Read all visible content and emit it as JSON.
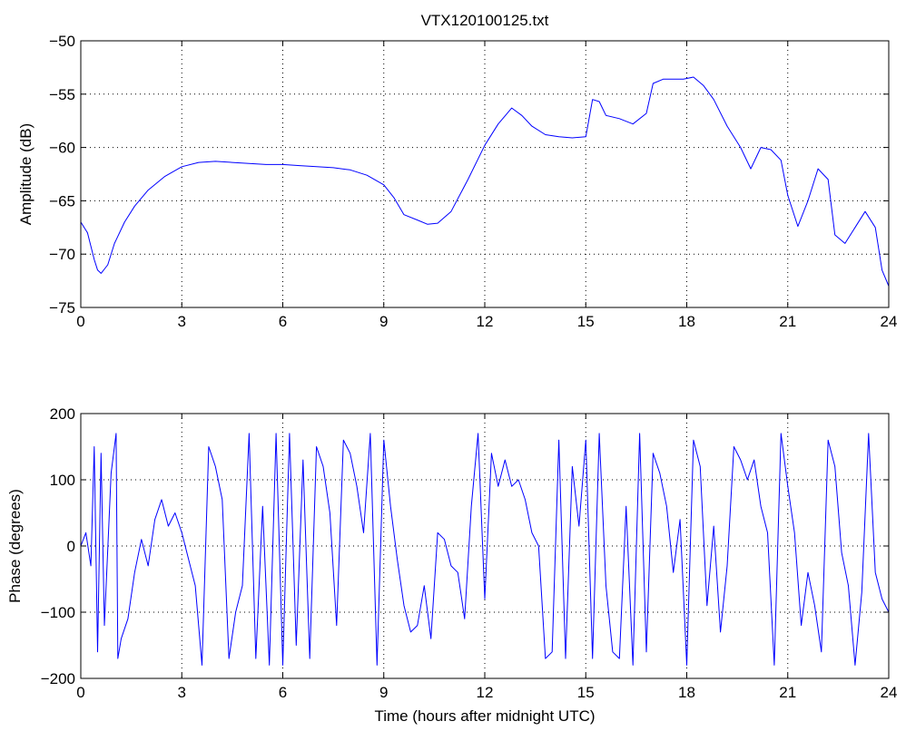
{
  "figure": {
    "background": "#ffffff",
    "line_color": "#0000ff",
    "axis_color": "#000000",
    "grid_color": "#000000"
  },
  "chart_data": [
    {
      "type": "line",
      "title": "VTX120100125.txt",
      "xlabel": "",
      "ylabel": "Amplitude (dB)",
      "xlim": [
        0,
        24
      ],
      "ylim": [
        -75,
        -50
      ],
      "xticks": [
        0,
        3,
        6,
        9,
        12,
        15,
        18,
        21,
        24
      ],
      "yticks": [
        -75,
        -70,
        -65,
        -60,
        -55,
        -50
      ],
      "grid": true,
      "series": [
        {
          "color": "#0000ff",
          "x": [
            0,
            0.2,
            0.4,
            0.5,
            0.6,
            0.8,
            1.0,
            1.3,
            1.6,
            2.0,
            2.5,
            3.0,
            3.5,
            4.0,
            4.5,
            5.0,
            5.5,
            6.0,
            6.5,
            7.0,
            7.5,
            8.0,
            8.5,
            9.0,
            9.3,
            9.6,
            10.0,
            10.3,
            10.6,
            11.0,
            11.5,
            12.0,
            12.4,
            12.8,
            13.1,
            13.4,
            13.8,
            14.2,
            14.6,
            15.0,
            15.2,
            15.4,
            15.6,
            16.0,
            16.4,
            16.8,
            17.0,
            17.3,
            17.6,
            17.9,
            18.2,
            18.5,
            18.8,
            19.2,
            19.6,
            19.9,
            20.2,
            20.5,
            20.8,
            21.0,
            21.3,
            21.6,
            21.9,
            22.2,
            22.4,
            22.7,
            23.0,
            23.3,
            23.6,
            23.8,
            24.0
          ],
          "y": [
            -67.0,
            -68.0,
            -70.5,
            -71.5,
            -71.8,
            -71.0,
            -69.0,
            -67.0,
            -65.5,
            -64.0,
            -62.7,
            -61.8,
            -61.4,
            -61.3,
            -61.4,
            -61.5,
            -61.6,
            -61.6,
            -61.7,
            -61.8,
            -61.9,
            -62.1,
            -62.6,
            -63.5,
            -64.7,
            -66.3,
            -66.8,
            -67.2,
            -67.1,
            -66.0,
            -63.0,
            -59.8,
            -57.8,
            -56.3,
            -57.0,
            -58.0,
            -58.8,
            -59.0,
            -59.1,
            -59.0,
            -55.5,
            -55.7,
            -57.0,
            -57.3,
            -57.8,
            -56.8,
            -54.0,
            -53.6,
            -53.6,
            -53.6,
            -53.4,
            -54.2,
            -55.5,
            -58.0,
            -60.0,
            -62.0,
            -60.0,
            -60.2,
            -61.2,
            -64.5,
            -67.4,
            -65.0,
            -62.0,
            -63.0,
            -68.2,
            -69.0,
            -67.5,
            -66.0,
            -67.5,
            -71.5,
            -73.0
          ]
        }
      ]
    },
    {
      "type": "line",
      "title": "",
      "xlabel": "Time (hours after midnight UTC)",
      "ylabel": "Phase (degrees)",
      "xlim": [
        0,
        24
      ],
      "ylim": [
        -200,
        200
      ],
      "xticks": [
        0,
        3,
        6,
        9,
        12,
        15,
        18,
        21,
        24
      ],
      "yticks": [
        -200,
        -100,
        0,
        100,
        200
      ],
      "grid": true,
      "series": [
        {
          "color": "#0000ff",
          "x": [
            0,
            0.15,
            0.3,
            0.4,
            0.5,
            0.6,
            0.7,
            0.9,
            1.05,
            1.1,
            1.2,
            1.4,
            1.6,
            1.8,
            2.0,
            2.2,
            2.4,
            2.6,
            2.8,
            3.0,
            3.2,
            3.4,
            3.6,
            3.8,
            4.0,
            4.2,
            4.4,
            4.6,
            4.8,
            5.0,
            5.2,
            5.4,
            5.6,
            5.8,
            6.0,
            6.2,
            6.4,
            6.6,
            6.8,
            7.0,
            7.2,
            7.4,
            7.6,
            7.8,
            8.0,
            8.2,
            8.4,
            8.6,
            8.8,
            9.0,
            9.2,
            9.4,
            9.6,
            9.8,
            10.0,
            10.2,
            10.4,
            10.6,
            10.8,
            11.0,
            11.2,
            11.4,
            11.6,
            11.8,
            12.0,
            12.2,
            12.4,
            12.6,
            12.8,
            13.0,
            13.2,
            13.4,
            13.6,
            13.8,
            14.0,
            14.2,
            14.4,
            14.6,
            14.8,
            15.0,
            15.2,
            15.4,
            15.6,
            15.8,
            16.0,
            16.2,
            16.4,
            16.6,
            16.8,
            17.0,
            17.2,
            17.4,
            17.6,
            17.8,
            18.0,
            18.2,
            18.4,
            18.6,
            18.8,
            19.0,
            19.2,
            19.4,
            19.6,
            19.8,
            20.0,
            20.2,
            20.4,
            20.6,
            20.8,
            21.0,
            21.2,
            21.4,
            21.6,
            21.8,
            22.0,
            22.2,
            22.4,
            22.6,
            22.8,
            23.0,
            23.2,
            23.4,
            23.6,
            23.8,
            24.0
          ],
          "y": [
            0,
            20,
            -30,
            150,
            -160,
            140,
            -120,
            110,
            170,
            -170,
            -140,
            -110,
            -40,
            10,
            -30,
            40,
            70,
            30,
            50,
            20,
            -20,
            -60,
            -180,
            150,
            120,
            70,
            -170,
            -100,
            -60,
            170,
            -170,
            60,
            -180,
            170,
            -180,
            170,
            -150,
            130,
            -170,
            150,
            120,
            50,
            -120,
            160,
            140,
            90,
            20,
            170,
            -180,
            160,
            60,
            -20,
            -90,
            -130,
            -120,
            -60,
            -140,
            20,
            10,
            -30,
            -40,
            -110,
            60,
            170,
            -80,
            140,
            90,
            130,
            90,
            100,
            70,
            20,
            0,
            -170,
            -160,
            160,
            -170,
            120,
            30,
            160,
            -170,
            170,
            -60,
            -160,
            -170,
            60,
            -180,
            170,
            -160,
            140,
            110,
            60,
            -40,
            40,
            -180,
            160,
            120,
            -90,
            30,
            -130,
            -30,
            150,
            130,
            100,
            130,
            60,
            20,
            -180,
            170,
            90,
            20,
            -120,
            -40,
            -90,
            -160,
            160,
            120,
            -10,
            -60,
            -180,
            -70,
            170,
            -40,
            -80,
            -100
          ]
        }
      ]
    }
  ]
}
